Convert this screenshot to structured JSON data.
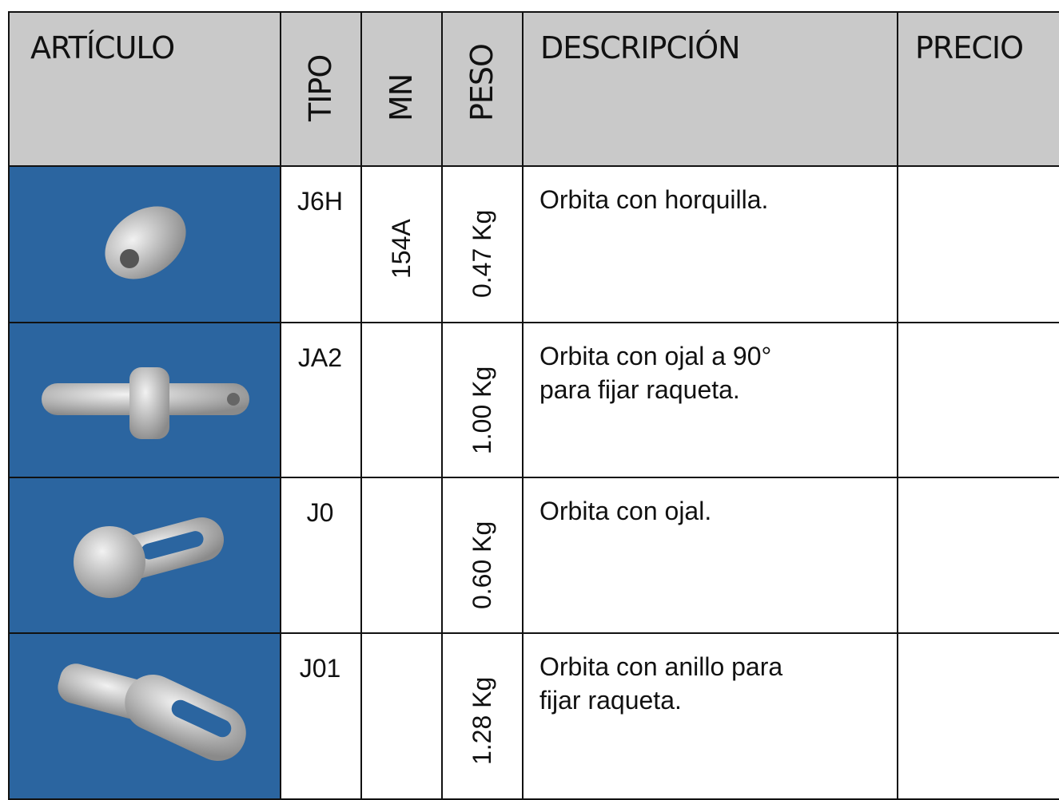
{
  "table": {
    "headers": [
      "ARTÍCULO",
      "TIPO",
      "MN",
      "PESO",
      "DESCRIPCIÓN",
      "PRECIO"
    ],
    "rows": [
      {
        "tipo": "J6H",
        "mn": "154A",
        "peso": "0.47 Kg",
        "descripcion": [
          "Orbita con horquilla."
        ]
      },
      {
        "tipo": "JA2",
        "peso": "1.00 Kg",
        "descripcion": [
          "Orbita con ojal a 90°",
          "para fijar raqueta."
        ]
      },
      {
        "tipo": "J0",
        "peso": "0.60 Kg",
        "descripcion": [
          "Orbita con ojal."
        ]
      },
      {
        "tipo": "J01",
        "peso": "1.28 Kg",
        "descripcion": [
          "Orbita con anillo para",
          "fijar raqueta."
        ]
      }
    ]
  }
}
